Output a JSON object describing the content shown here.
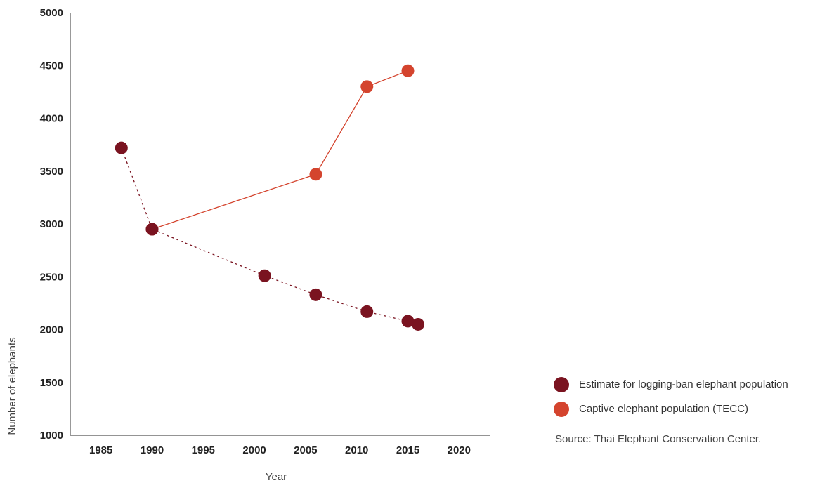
{
  "chart_data": {
    "type": "line",
    "xlabel": "Year",
    "ylabel": "Number of elephants",
    "xlim": [
      1982,
      2023
    ],
    "ylim": [
      1000,
      5000
    ],
    "x_ticks": [
      1985,
      1990,
      1995,
      2000,
      2005,
      2010,
      2015,
      2020
    ],
    "y_ticks": [
      1000,
      1500,
      2000,
      2500,
      3000,
      3500,
      4000,
      4500,
      5000
    ],
    "grid": false,
    "legend_position": "bottom-right",
    "series": [
      {
        "name": "Estimate for logging-ban elephant population",
        "color": "#7a1320",
        "line_style": "dashed",
        "x": [
          1987,
          1990,
          2001,
          2006,
          2011,
          2015,
          2016
        ],
        "y": [
          3720,
          2950,
          2510,
          2330,
          2170,
          2080,
          2050
        ]
      },
      {
        "name": "Captive elephant population (TECC)",
        "color": "#d4442e",
        "line_style": "solid",
        "x": [
          1990,
          2006,
          2011,
          2015
        ],
        "y": [
          2950,
          3470,
          4300,
          4450
        ]
      }
    ]
  },
  "source": "Source: Thai Elephant Conservation Center."
}
